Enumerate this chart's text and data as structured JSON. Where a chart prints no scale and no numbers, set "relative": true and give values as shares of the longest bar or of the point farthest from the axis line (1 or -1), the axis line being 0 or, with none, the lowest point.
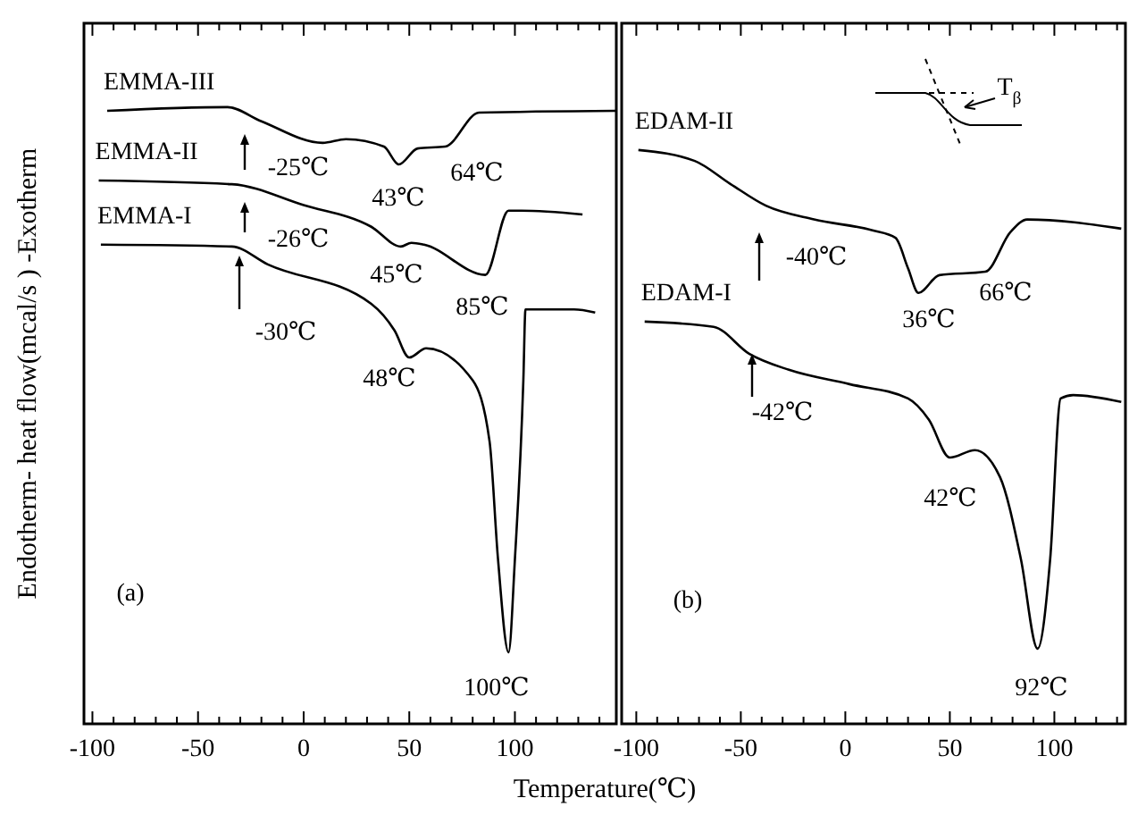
{
  "chart_data": [
    {
      "type": "line",
      "relative": true,
      "ylabel": "Endotherm- heat flow(mcal/s  ) -Exotherm",
      "xlabel": "Temperature(℃)",
      "xlim": [
        -104,
        148
      ],
      "xticks": [
        -100,
        {
          "value": -90,
          "label": null
        },
        {
          "value": -80,
          "label": null
        },
        {
          "value": -70,
          "label": null
        },
        {
          "value": -60,
          "label": null
        },
        -50,
        {
          "value": -40,
          "label": null
        },
        {
          "value": -30,
          "label": null
        },
        {
          "value": -20,
          "label": null
        },
        {
          "value": -10,
          "label": null
        },
        0,
        {
          "value": 10,
          "label": null
        },
        {
          "value": 20,
          "label": null
        },
        {
          "value": 30,
          "label": null
        },
        {
          "value": 40,
          "label": null
        },
        50,
        {
          "value": 60,
          "label": null
        },
        {
          "value": 70,
          "label": null
        },
        {
          "value": 80,
          "label": null
        },
        {
          "value": 90,
          "label": null
        },
        100,
        {
          "value": 110,
          "label": null
        },
        {
          "value": 120,
          "label": null
        },
        {
          "value": 130,
          "label": null
        },
        {
          "value": 140,
          "label": null
        }
      ],
      "tick_labels": "x",
      "grid": false,
      "marker": "none",
      "line_style": "solid",
      "legend": "top left",
      "series": [
        {
          "name": "EMMA-III",
          "color": "#000000",
          "x": [
            -93,
            -36,
            -20,
            9,
            20,
            38,
            45,
            54,
            67,
            83,
            148
          ],
          "values": [
            0.994,
            1.0,
            0.977,
            0.942,
            0.948,
            0.936,
            0.907,
            0.933,
            0.936,
            0.991,
            0.994
          ]
        },
        {
          "name": "EMMA-II",
          "color": "#000000",
          "x": [
            -97,
            -34,
            0,
            32,
            46,
            51,
            57,
            86,
            97,
            103,
            132
          ],
          "values": [
            0.881,
            0.875,
            0.841,
            0.806,
            0.774,
            0.78,
            0.777,
            0.728,
            0.832,
            0.832,
            0.826
          ]
        },
        {
          "name": "EMMA-I",
          "color": "#000000",
          "x": [
            -96,
            -34,
            -17,
            32,
            43,
            50,
            58,
            80,
            88,
            92,
            97,
            100,
            104,
            105,
            128,
            138
          ],
          "values": [
            0.777,
            0.774,
            0.745,
            0.681,
            0.638,
            0.594,
            0.609,
            0.557,
            0.458,
            0.267,
            0.116,
            0.267,
            0.557,
            0.672,
            0.672,
            0.667
          ]
        }
      ],
      "annotations": [
        "-25℃",
        "43℃",
        "64℃",
        "-26℃",
        "45℃",
        "85℃",
        "-30℃",
        "48℃",
        "100℃",
        "(a)"
      ]
    },
    {
      "type": "line",
      "relative": true,
      "xlim": [
        -107,
        134
      ],
      "xticks": [
        -100,
        {
          "value": -90,
          "label": null
        },
        {
          "value": -80,
          "label": null
        },
        {
          "value": -70,
          "label": null
        },
        {
          "value": -60,
          "label": null
        },
        -50,
        {
          "value": -40,
          "label": null
        },
        {
          "value": -30,
          "label": null
        },
        {
          "value": -20,
          "label": null
        },
        {
          "value": -10,
          "label": null
        },
        0,
        {
          "value": 10,
          "label": null
        },
        {
          "value": 20,
          "label": null
        },
        {
          "value": 30,
          "label": null
        },
        {
          "value": 40,
          "label": null
        },
        50,
        {
          "value": 60,
          "label": null
        },
        {
          "value": 70,
          "label": null
        },
        {
          "value": 80,
          "label": null
        },
        {
          "value": 90,
          "label": null
        },
        100,
        {
          "value": 110,
          "label": null
        },
        {
          "value": 120,
          "label": null
        },
        {
          "value": 130,
          "label": null
        }
      ],
      "tick_labels": "x",
      "grid": false,
      "marker": "none",
      "line_style": "solid",
      "series": [
        {
          "name": "EDAM-II",
          "color": "#000000",
          "x": [
            -99,
            -72,
            -55,
            -38,
            -15,
            13,
            24,
            30,
            35,
            45,
            67,
            79,
            87,
            132
          ],
          "values": [
            1.0,
            0.981,
            0.941,
            0.903,
            0.879,
            0.86,
            0.847,
            0.794,
            0.751,
            0.782,
            0.788,
            0.857,
            0.879,
            0.863
          ]
        },
        {
          "name": "EDAM-I",
          "color": "#000000",
          "x": [
            -96,
            -63,
            -46,
            -27,
            2,
            30,
            40,
            50,
            62,
            74,
            84,
            92,
            98,
            103,
            109,
            132
          ],
          "values": [
            0.701,
            0.692,
            0.645,
            0.617,
            0.592,
            0.567,
            0.53,
            0.464,
            0.477,
            0.43,
            0.287,
            0.131,
            0.287,
            0.567,
            0.573,
            0.561
          ]
        }
      ],
      "annotations": [
        "-40℃",
        "36℃",
        "66℃",
        "-42℃",
        "42℃",
        "92℃",
        "(b)",
        "T$_{β}$"
      ]
    }
  ]
}
